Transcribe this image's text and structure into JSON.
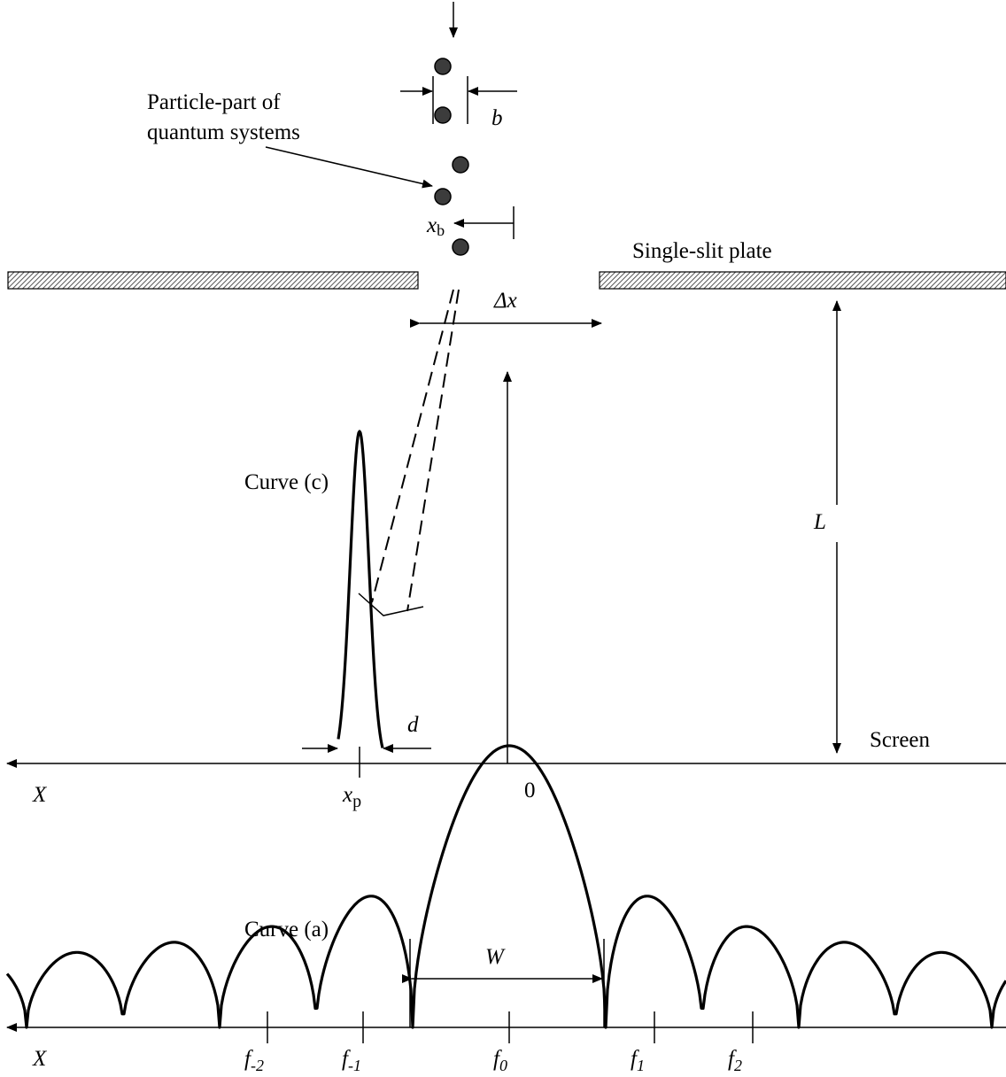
{
  "labels": {
    "particle_caption_line1": "Particle-part of",
    "particle_caption_line2": "quantum systems",
    "b": "b",
    "xb_main": "x",
    "xb_sub": "b",
    "single_slit_plate": "Single-slit plate",
    "delta_x": "Δx",
    "L": "L",
    "curve_c": "Curve (c)",
    "d": "d",
    "screen": "Screen",
    "x_axis_top": "X",
    "xp_main": "x",
    "xp_sub": "p",
    "origin": "0",
    "curve_a": "Curve (a)",
    "W": "W",
    "x_axis_bottom": "X",
    "fringe_labels": [
      {
        "main": "f",
        "sub": "-2"
      },
      {
        "main": "f",
        "sub": "-1"
      },
      {
        "main": "f",
        "sub": "0"
      },
      {
        "main": "f",
        "sub": "1"
      },
      {
        "main": "f",
        "sub": "2"
      }
    ]
  },
  "colors": {
    "line": "#000000",
    "particle_fill": "#3c3c3c",
    "plate_hatch": "#555555"
  }
}
